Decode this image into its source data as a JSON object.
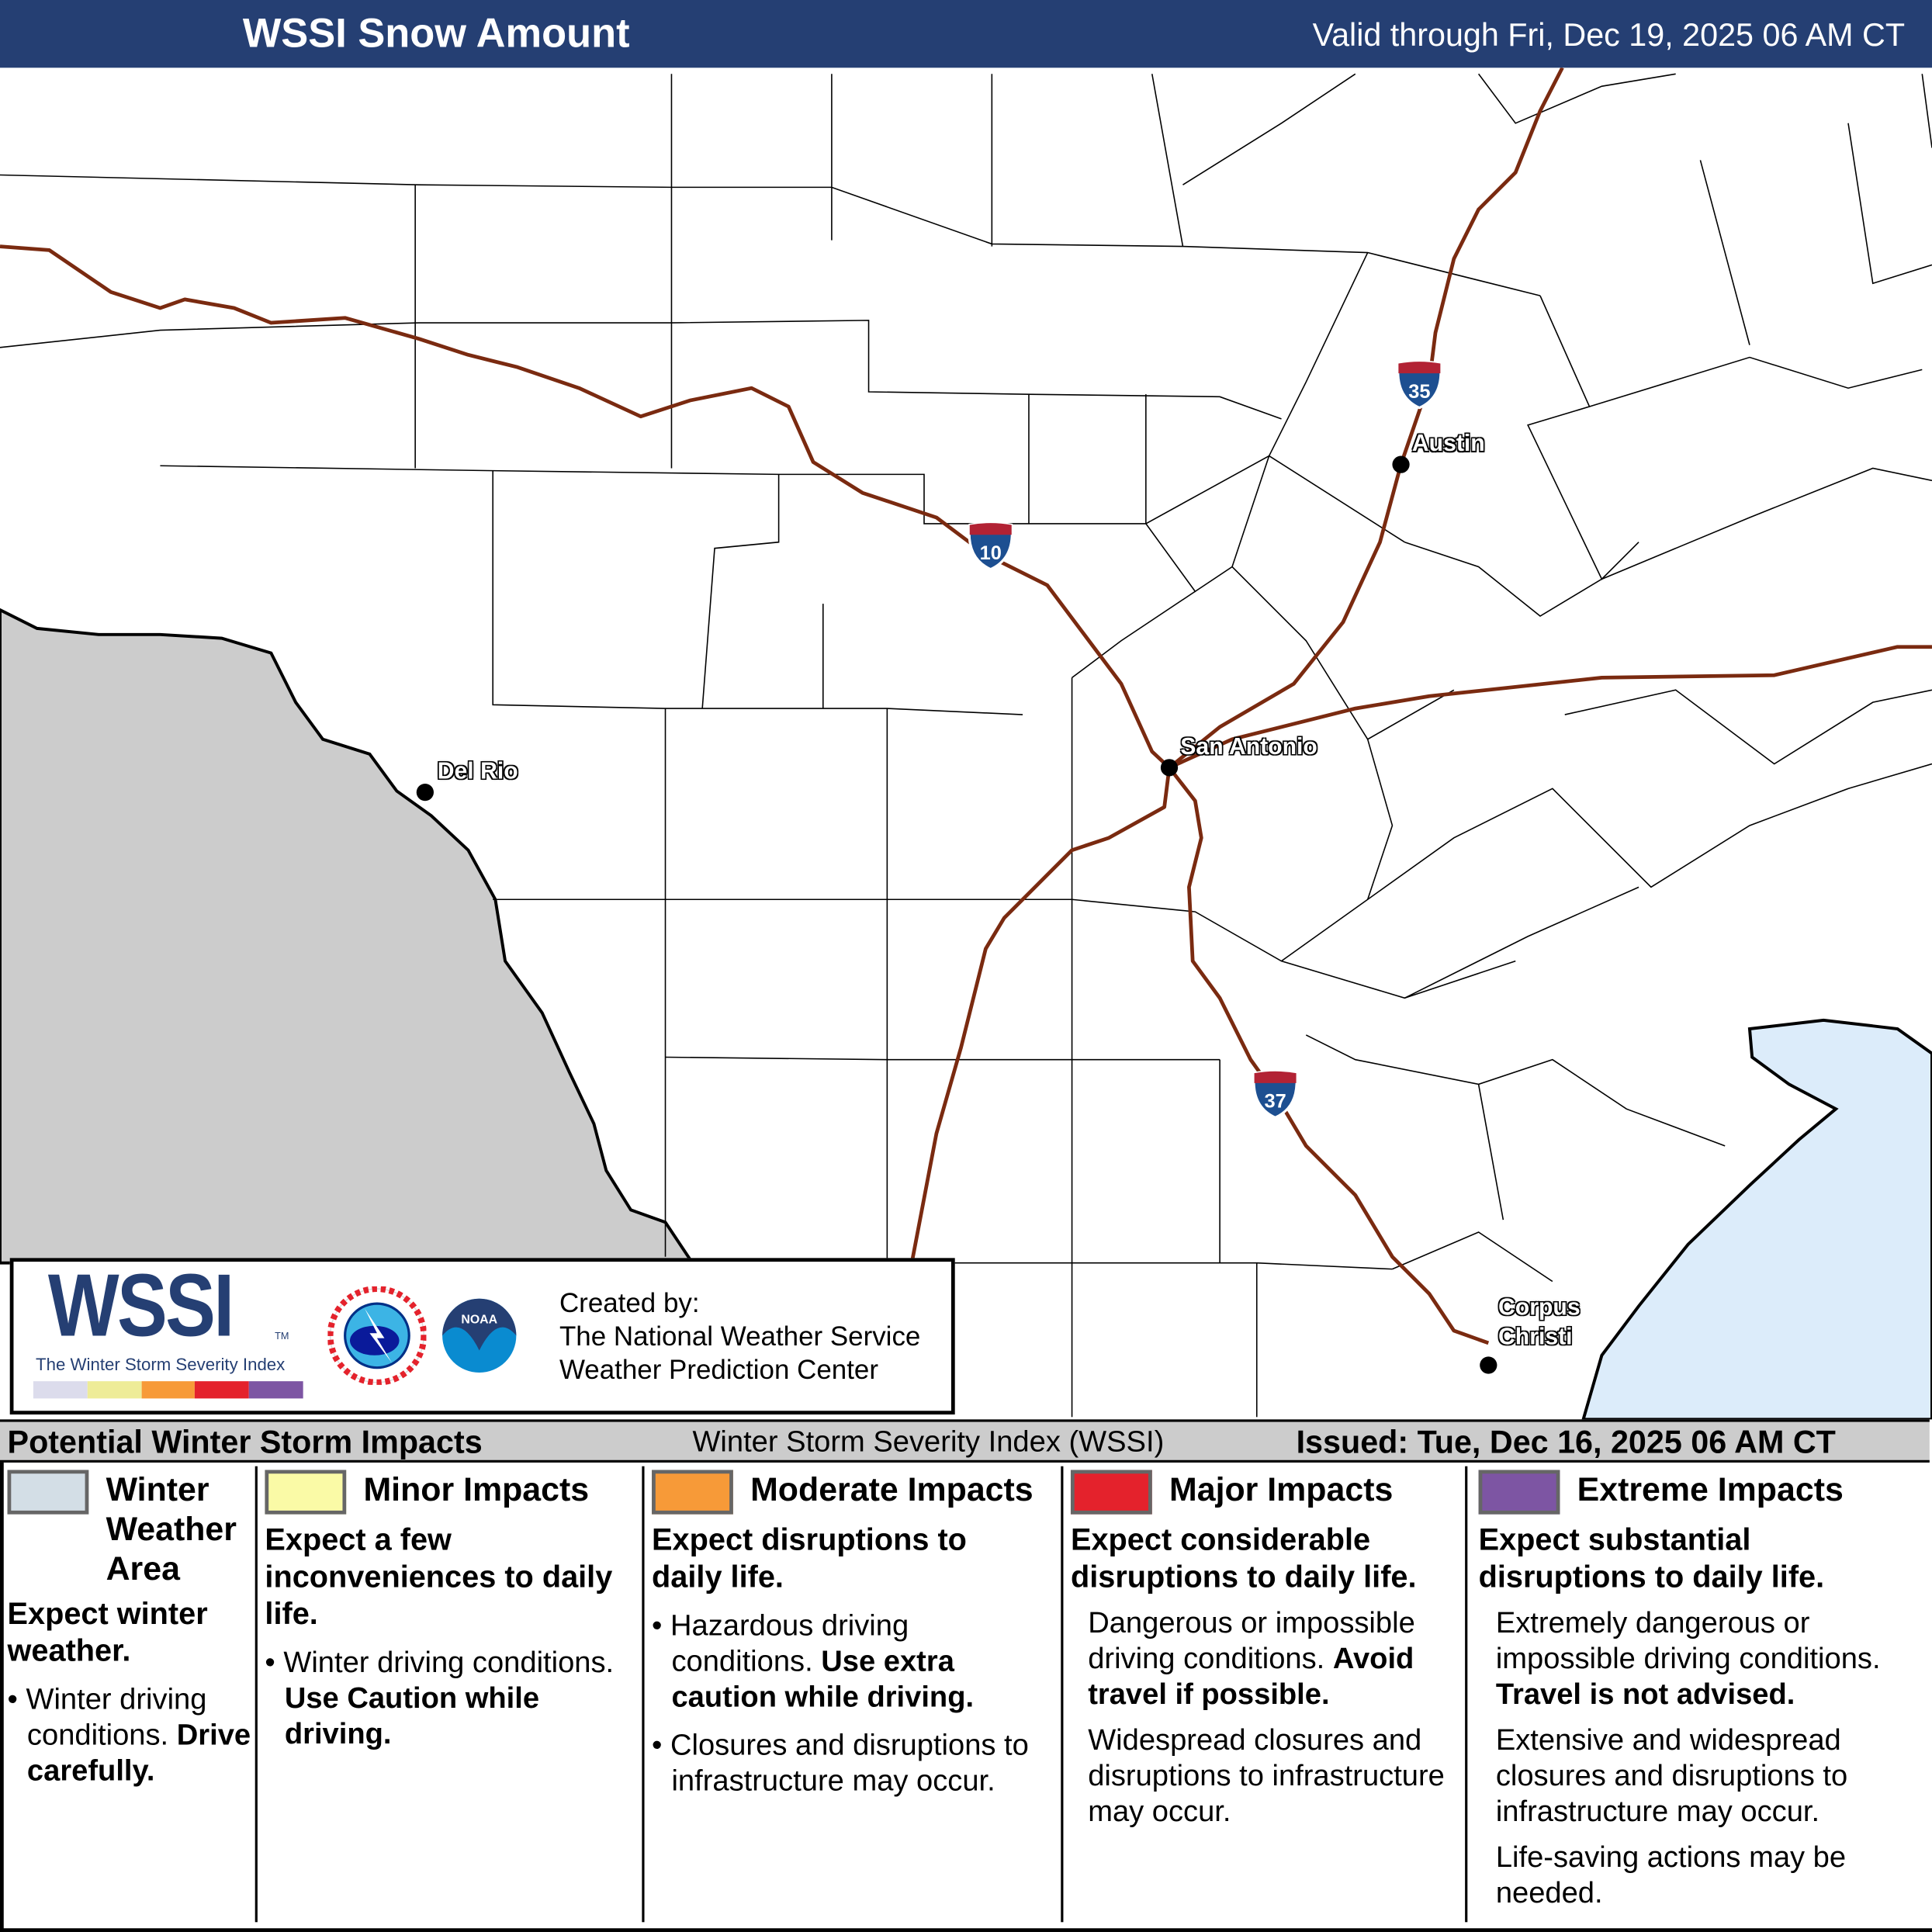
{
  "header": {
    "title": "WSSI Snow Amount",
    "valid": "Valid through Fri, Dec 19, 2025 06 AM CT",
    "bg_color": "#253f73"
  },
  "map": {
    "cities": [
      {
        "name": "Del Rio"
      },
      {
        "name": "San Antonio"
      },
      {
        "name": "Austin"
      },
      {
        "name": "Corpus Christi"
      }
    ],
    "interstates": [
      "35",
      "10",
      "37"
    ],
    "colors": {
      "outside_area": "#cccccc",
      "water": "#dcecfa",
      "roads": "#7a2a10"
    }
  },
  "logo_box": {
    "wssi": "WSSI",
    "tm": "TM",
    "wssi_subtitle": "The Winter Storm Severity Index",
    "nws_logo_text": "NATIONAL WEATHER SERVICE",
    "noaa_logo_text": "NOAA",
    "credit_label": "Created by:",
    "credit_line1": "The National Weather Service",
    "credit_line2": "Weather Prediction Center",
    "scale_colors": [
      "#dcdcec",
      "#eeec98",
      "#f79a38",
      "#e4222c",
      "#7d55a3"
    ]
  },
  "impacts_band": {
    "title": "Potential Winter Storm Impacts",
    "subtitle": "Winter Storm Severity Index (WSSI)",
    "issued": "Issued: Tue, Dec 16, 2025 06 AM CT"
  },
  "categories": [
    {
      "title": "Winter Weather Area",
      "color": "#d3dee6",
      "summary": "Expect winter weather.",
      "bullet": "Winter driving conditions.",
      "bullet_bold": "Drive carefully."
    },
    {
      "title": "Minor Impacts",
      "color": "#fafaa6",
      "summary": "Expect a few inconveniences to daily life.",
      "bullet": "Winter driving conditions.",
      "bullet_bold": "Use Caution while driving."
    },
    {
      "title": "Moderate Impacts",
      "color": "#f79a38",
      "summary": "Expect disruptions to daily life.",
      "bullet": "Hazardous driving conditions.",
      "bullet_bold": "Use extra caution while driving.",
      "bullet2": "Closures and disruptions to infrastructure may occur."
    },
    {
      "title": "Major Impacts",
      "color": "#e4222c",
      "summary": "Expect considerable disruptions to daily life.",
      "text1": "Dangerous or impossible driving conditions.",
      "text1_bold": "Avoid travel if possible.",
      "text2": "Widespread closures and disruptions to infrastructure may occur."
    },
    {
      "title": "Extreme Impacts",
      "color": "#7d55a3",
      "summary": "Expect substantial disruptions to daily life.",
      "text1": "Extremely dangerous or impossible driving conditions.",
      "text1_bold": "Travel is not advised.",
      "text2": "Extensive and widespread closures and disruptions to infrastructure may occur.",
      "text3": "Life-saving actions may be needed."
    }
  ]
}
